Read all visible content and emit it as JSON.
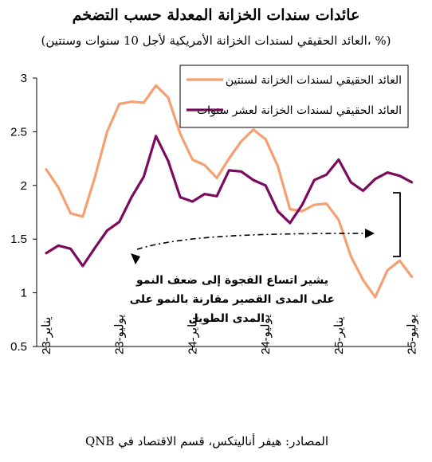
{
  "chart_data": {
    "type": "line",
    "title": "عائدات سندات الخزانة المعدلة حسب التضخم",
    "subtitle": "(العائد الحقيقي لسندات الخزانة الأمريكية لأجل 10 سنوات وسنتين، %)",
    "ylim": [
      0.5,
      3
    ],
    "yticks": [
      "0.5",
      "1",
      "1.5",
      "2",
      "2.5",
      "3"
    ],
    "xtick_labels": [
      "يناير-23",
      "يوليو-23",
      "يناير-24",
      "يوليو-24",
      "يناير-25",
      "يوليو-25"
    ],
    "xtick_index": [
      0,
      6,
      12,
      18,
      24,
      30
    ],
    "grid": false,
    "legend_position": "top-right",
    "series": [
      {
        "name": "العائد الحقيقي لسندات الخزانة لسنتين",
        "color": "#F4A070",
        "values": [
          2.15,
          1.98,
          1.74,
          1.71,
          2.08,
          2.5,
          2.76,
          2.78,
          2.77,
          2.93,
          2.82,
          2.48,
          2.24,
          2.19,
          2.07,
          2.25,
          2.41,
          2.52,
          2.43,
          2.18,
          1.78,
          1.76,
          1.82,
          1.83,
          1.68,
          1.34,
          1.12,
          0.96,
          1.21,
          1.3,
          1.15
        ]
      },
      {
        "name": "العائد الحقيقي لسندات الخزانة لعشر سنوات",
        "color": "#7B0A5C",
        "values": [
          1.37,
          1.44,
          1.41,
          1.25,
          1.42,
          1.58,
          1.66,
          1.89,
          2.08,
          2.46,
          2.23,
          1.89,
          1.85,
          1.92,
          1.9,
          2.14,
          2.13,
          2.05,
          2.0,
          1.76,
          1.65,
          1.82,
          2.05,
          2.1,
          2.24,
          2.03,
          1.95,
          2.06,
          2.12,
          2.09,
          2.03
        ]
      }
    ],
    "annotation": {
      "line1": "يشير اتساع الفجوة إلى ضعف النمو",
      "line2": "على المدى القصير مقارنة بالنمو على",
      "line3": "المدى الطويل"
    }
  },
  "source": "المصادر: هيفر أناليتكس، قسم الاقتصاد في QNB"
}
